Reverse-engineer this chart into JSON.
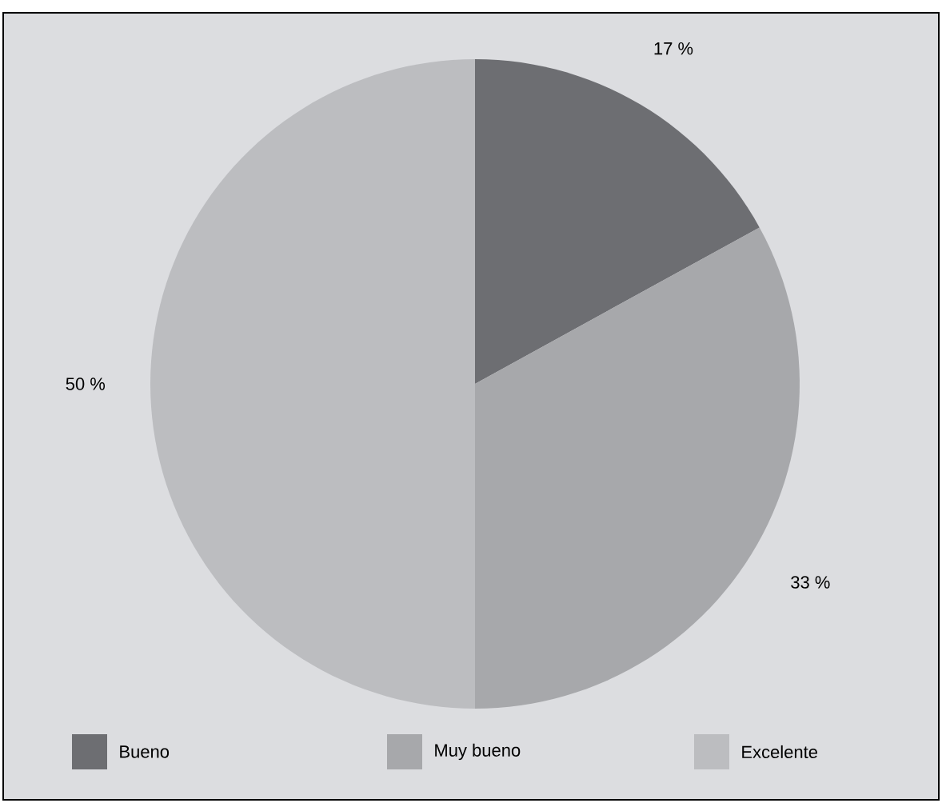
{
  "chart_data": {
    "type": "pie",
    "categories": [
      "Bueno",
      "Muy bueno",
      "Excelente"
    ],
    "values": [
      17,
      33,
      50
    ],
    "colors": [
      "#6d6e72",
      "#a7a8ab",
      "#bcbdc0"
    ],
    "value_labels": [
      "17 %",
      "33 %",
      "50 %"
    ],
    "legend": "bottom"
  }
}
